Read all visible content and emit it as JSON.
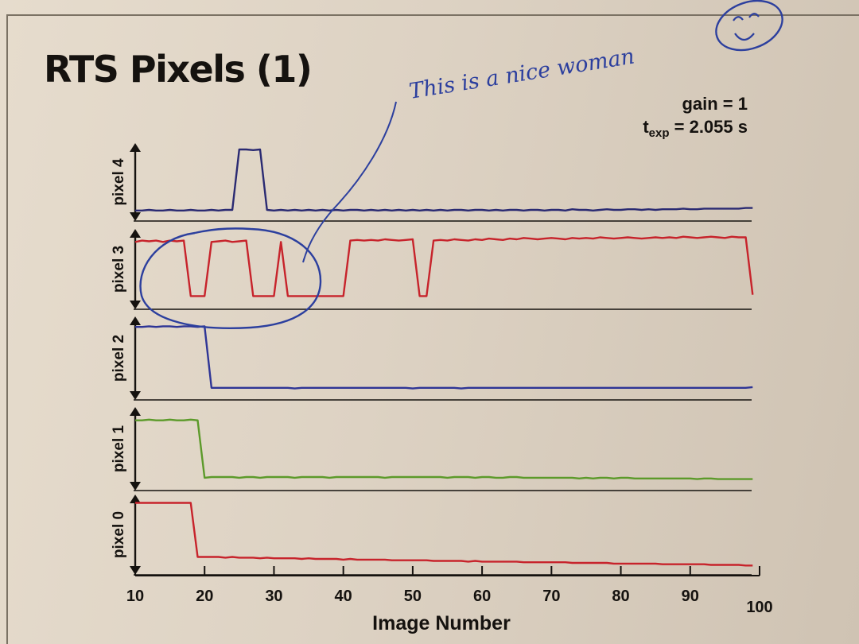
{
  "title": "RTS Pixels (1)",
  "annotation": {
    "handwriting": "This is a nice woman",
    "color": "#2c3f9e"
  },
  "chart_data": {
    "type": "line",
    "title": "RTS Pixels (1)",
    "subtitle_lines": {
      "gain": "gain = 1",
      "texp_symbol": "t",
      "texp_subscript": "exp",
      "texp_value": " = 2.055 s"
    },
    "xlabel": "Image Number",
    "xlim": [
      10,
      100
    ],
    "xticks": [
      10,
      20,
      30,
      40,
      50,
      60,
      70,
      80,
      90,
      100
    ],
    "x_tick_labels": [
      "10",
      "20",
      "30",
      "40",
      "50",
      "60",
      "70",
      "80",
      "90",
      "100"
    ],
    "grid": false,
    "panel_order_top_to_bottom": [
      "pixel 4",
      "pixel 3",
      "pixel 2",
      "pixel 1",
      "pixel 0"
    ],
    "series": [
      {
        "name": "pixel 4",
        "color": "#2a2a72",
        "y_normalized": [
          0.04,
          0.04,
          0.05,
          0.04,
          0.04,
          0.05,
          0.04,
          0.04,
          0.05,
          0.04,
          0.04,
          0.05,
          0.04,
          0.05,
          0.05,
          1.0,
          1.0,
          0.99,
          1.0,
          0.05,
          0.04,
          0.05,
          0.04,
          0.05,
          0.04,
          0.05,
          0.04,
          0.05,
          0.04,
          0.05,
          0.04,
          0.05,
          0.05,
          0.04,
          0.05,
          0.04,
          0.05,
          0.04,
          0.05,
          0.04,
          0.05,
          0.04,
          0.05,
          0.04,
          0.05,
          0.04,
          0.05,
          0.05,
          0.04,
          0.05,
          0.05,
          0.04,
          0.05,
          0.04,
          0.05,
          0.05,
          0.04,
          0.05,
          0.05,
          0.04,
          0.05,
          0.05,
          0.04,
          0.06,
          0.05,
          0.05,
          0.04,
          0.05,
          0.06,
          0.05,
          0.05,
          0.06,
          0.06,
          0.05,
          0.06,
          0.05,
          0.06,
          0.06,
          0.06,
          0.07,
          0.06,
          0.06,
          0.07,
          0.07,
          0.07,
          0.07,
          0.07,
          0.07,
          0.08,
          0.08
        ]
      },
      {
        "name": "pixel 3",
        "color": "#c7232b",
        "y_normalized": [
          0.9,
          0.92,
          0.91,
          0.92,
          0.9,
          0.92,
          0.91,
          0.92,
          0.08,
          0.08,
          0.08,
          0.9,
          0.91,
          0.92,
          0.9,
          0.91,
          0.92,
          0.08,
          0.08,
          0.08,
          0.08,
          0.9,
          0.08,
          0.08,
          0.08,
          0.08,
          0.08,
          0.08,
          0.08,
          0.08,
          0.08,
          0.92,
          0.93,
          0.92,
          0.93,
          0.92,
          0.94,
          0.93,
          0.92,
          0.93,
          0.94,
          0.08,
          0.08,
          0.92,
          0.93,
          0.92,
          0.94,
          0.93,
          0.92,
          0.94,
          0.93,
          0.95,
          0.94,
          0.93,
          0.95,
          0.94,
          0.96,
          0.95,
          0.94,
          0.95,
          0.96,
          0.95,
          0.94,
          0.96,
          0.95,
          0.96,
          0.95,
          0.97,
          0.96,
          0.95,
          0.96,
          0.97,
          0.96,
          0.95,
          0.96,
          0.97,
          0.96,
          0.97,
          0.96,
          0.98,
          0.97,
          0.96,
          0.97,
          0.98,
          0.97,
          0.96,
          0.98,
          0.97,
          0.97,
          0.1
        ]
      },
      {
        "name": "pixel 2",
        "color": "#2e3596",
        "y_normalized": [
          0.94,
          0.94,
          0.95,
          0.94,
          0.95,
          0.95,
          0.94,
          0.95,
          0.95,
          0.94,
          0.95,
          0.06,
          0.06,
          0.06,
          0.06,
          0.06,
          0.06,
          0.06,
          0.06,
          0.06,
          0.06,
          0.06,
          0.06,
          0.05,
          0.06,
          0.06,
          0.06,
          0.06,
          0.06,
          0.06,
          0.06,
          0.06,
          0.06,
          0.06,
          0.06,
          0.06,
          0.06,
          0.06,
          0.06,
          0.06,
          0.05,
          0.06,
          0.06,
          0.06,
          0.06,
          0.06,
          0.06,
          0.05,
          0.06,
          0.06,
          0.06,
          0.06,
          0.06,
          0.06,
          0.06,
          0.06,
          0.06,
          0.06,
          0.06,
          0.06,
          0.06,
          0.06,
          0.06,
          0.06,
          0.06,
          0.06,
          0.06,
          0.06,
          0.06,
          0.06,
          0.06,
          0.06,
          0.06,
          0.06,
          0.06,
          0.06,
          0.06,
          0.06,
          0.06,
          0.06,
          0.06,
          0.06,
          0.06,
          0.06,
          0.06,
          0.06,
          0.06,
          0.06,
          0.06,
          0.07
        ]
      },
      {
        "name": "pixel 1",
        "color": "#5c9a2a",
        "y_normalized": [
          0.9,
          0.9,
          0.91,
          0.9,
          0.9,
          0.91,
          0.9,
          0.9,
          0.91,
          0.9,
          0.07,
          0.08,
          0.08,
          0.08,
          0.08,
          0.07,
          0.08,
          0.08,
          0.07,
          0.08,
          0.08,
          0.08,
          0.08,
          0.07,
          0.08,
          0.08,
          0.08,
          0.08,
          0.07,
          0.08,
          0.08,
          0.08,
          0.08,
          0.08,
          0.08,
          0.08,
          0.07,
          0.08,
          0.08,
          0.08,
          0.08,
          0.08,
          0.08,
          0.08,
          0.08,
          0.07,
          0.08,
          0.08,
          0.08,
          0.07,
          0.08,
          0.08,
          0.07,
          0.07,
          0.08,
          0.08,
          0.07,
          0.07,
          0.07,
          0.07,
          0.07,
          0.07,
          0.07,
          0.07,
          0.06,
          0.07,
          0.06,
          0.07,
          0.07,
          0.06,
          0.07,
          0.07,
          0.06,
          0.06,
          0.06,
          0.06,
          0.06,
          0.06,
          0.06,
          0.06,
          0.06,
          0.05,
          0.06,
          0.06,
          0.05,
          0.05,
          0.05,
          0.05,
          0.05,
          0.05
        ]
      },
      {
        "name": "pixel 0",
        "color": "#c7232b",
        "y_normalized": [
          0.97,
          0.97,
          0.97,
          0.97,
          0.97,
          0.97,
          0.97,
          0.97,
          0.97,
          0.15,
          0.15,
          0.15,
          0.15,
          0.14,
          0.15,
          0.14,
          0.14,
          0.14,
          0.13,
          0.14,
          0.13,
          0.13,
          0.13,
          0.13,
          0.12,
          0.13,
          0.12,
          0.12,
          0.12,
          0.12,
          0.11,
          0.12,
          0.11,
          0.11,
          0.11,
          0.11,
          0.11,
          0.1,
          0.1,
          0.1,
          0.1,
          0.1,
          0.1,
          0.09,
          0.09,
          0.09,
          0.09,
          0.09,
          0.08,
          0.09,
          0.08,
          0.08,
          0.08,
          0.08,
          0.08,
          0.08,
          0.07,
          0.07,
          0.07,
          0.07,
          0.07,
          0.07,
          0.07,
          0.06,
          0.06,
          0.06,
          0.06,
          0.06,
          0.06,
          0.05,
          0.05,
          0.05,
          0.05,
          0.05,
          0.05,
          0.05,
          0.04,
          0.04,
          0.04,
          0.04,
          0.04,
          0.04,
          0.04,
          0.03,
          0.03,
          0.03,
          0.03,
          0.03,
          0.02,
          0.02
        ]
      }
    ],
    "x_start": 10,
    "x_end": 99
  }
}
